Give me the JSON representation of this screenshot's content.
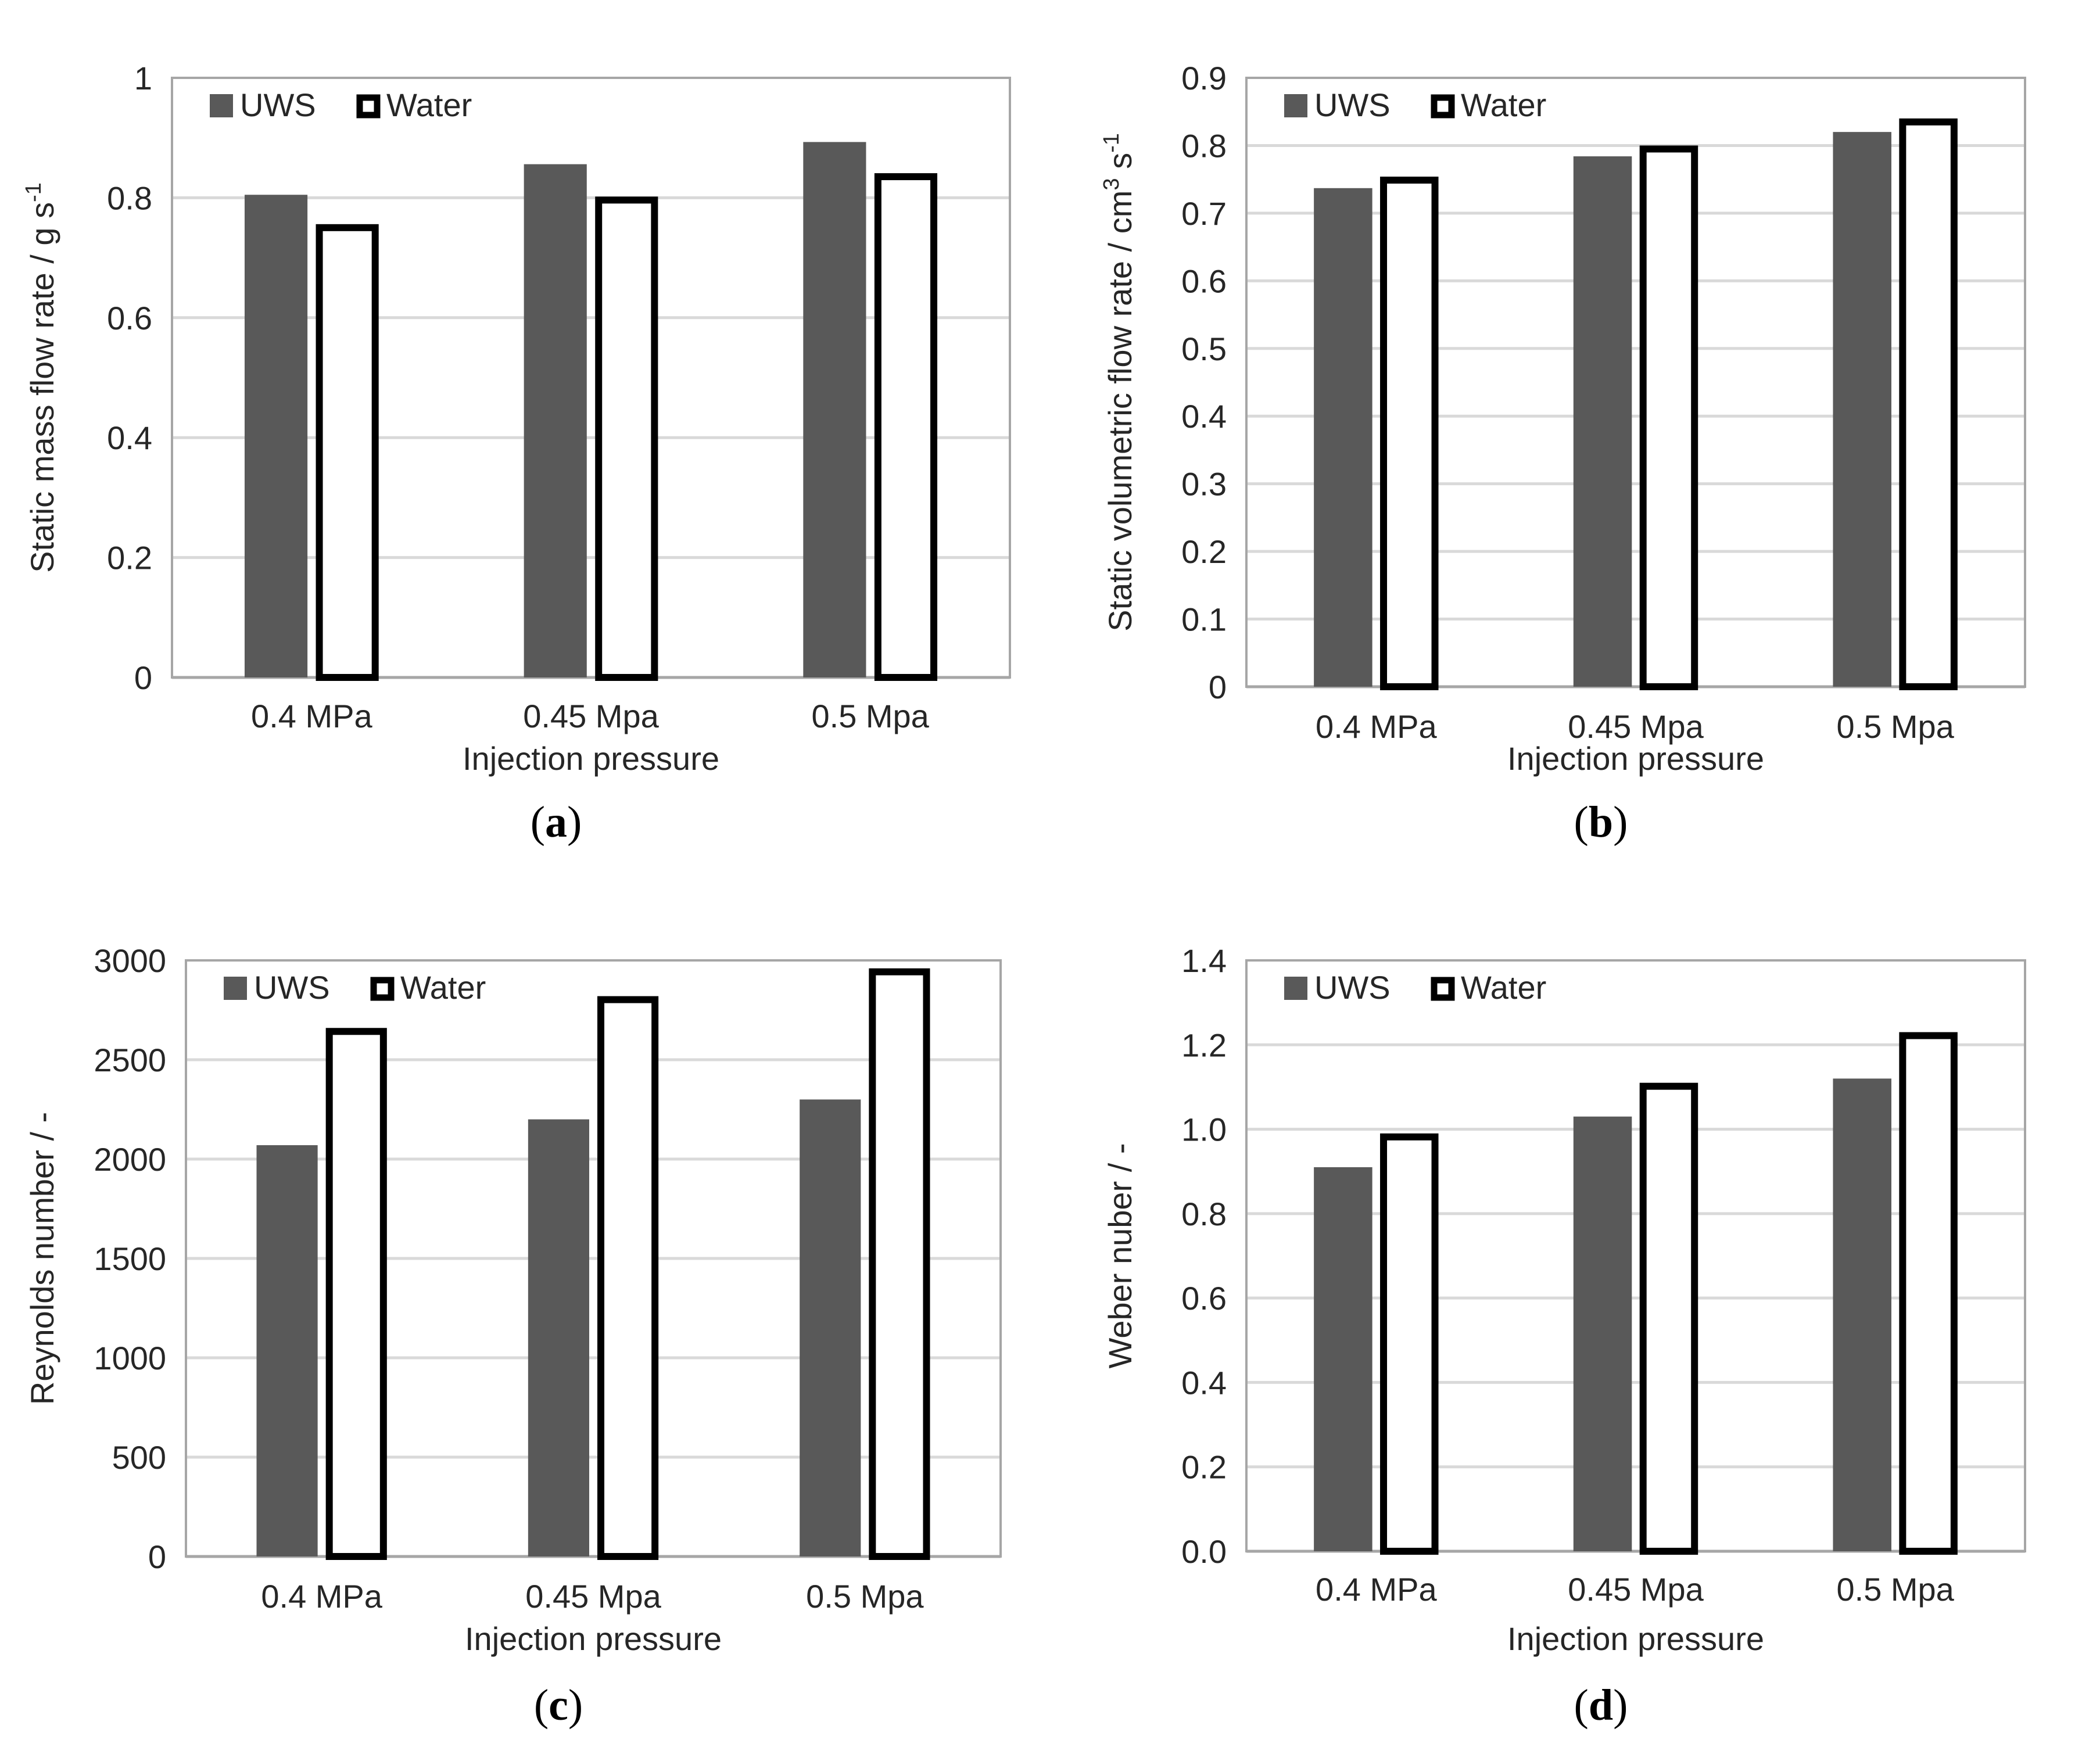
{
  "colors": {
    "uws": "#595959",
    "water_fill": "#ffffff",
    "water_stroke": "#000000",
    "grid": "#d9d9d9",
    "frame": "#a6a6a6"
  },
  "chart_data": [
    {
      "id": "a",
      "type": "bar",
      "panel_label": "a",
      "categories": [
        "0.4 MPa",
        "0.45 Mpa",
        "0.5 Mpa"
      ],
      "series": [
        {
          "name": "UWS",
          "values": [
            0.805,
            0.856,
            0.893
          ]
        },
        {
          "name": "Water",
          "values": [
            0.756,
            0.802,
            0.841
          ]
        }
      ],
      "xlabel": "Injection pressure",
      "ylabel": "Static mass flow rate / g s",
      "ylabel_sup": "-1",
      "ylim": [
        0,
        1
      ],
      "yticks": [
        "0",
        "0.2",
        "0.4",
        "0.6",
        "0.8",
        "1"
      ],
      "legend_position": "top-left",
      "grid": true
    },
    {
      "id": "b",
      "type": "bar",
      "panel_label": "b",
      "categories": [
        "0.4 MPa",
        "0.45 Mpa",
        "0.5 Mpa"
      ],
      "series": [
        {
          "name": "UWS",
          "values": [
            0.737,
            0.784,
            0.82
          ]
        },
        {
          "name": "Water",
          "values": [
            0.754,
            0.8,
            0.84
          ]
        }
      ],
      "xlabel": "Injection pressure",
      "ylabel": "Static volumetric flow rate / cm",
      "ylabel_sup": "3",
      "ylabel_tail": " s",
      "ylabel_tail_sup": "-1",
      "ylim": [
        0,
        0.9
      ],
      "yticks": [
        "0",
        "0.1",
        "0.2",
        "0.3",
        "0.4",
        "0.5",
        "0.6",
        "0.7",
        "0.8",
        "0.9"
      ],
      "legend_position": "top-left",
      "grid": true
    },
    {
      "id": "c",
      "type": "bar",
      "panel_label": "c",
      "categories": [
        "0.4 MPa",
        "0.45 Mpa",
        "0.5 Mpa"
      ],
      "series": [
        {
          "name": "UWS",
          "values": [
            2070,
            2200,
            2300
          ]
        },
        {
          "name": "Water",
          "values": [
            2660,
            2820,
            2960
          ]
        }
      ],
      "xlabel": "Injection pressure",
      "ylabel": "Reynolds number / -",
      "ylim": [
        0,
        3000
      ],
      "yticks": [
        "0",
        "500",
        "1000",
        "1500",
        "2000",
        "2500",
        "3000"
      ],
      "legend_position": "top-left",
      "grid": true
    },
    {
      "id": "d",
      "type": "bar",
      "panel_label": "d",
      "categories": [
        "0.4 MPa",
        "0.45 Mpa",
        "0.5 Mpa"
      ],
      "series": [
        {
          "name": "UWS",
          "values": [
            0.91,
            1.03,
            1.12
          ]
        },
        {
          "name": "Water",
          "values": [
            0.99,
            1.11,
            1.23
          ]
        }
      ],
      "xlabel": "Injection pressure",
      "ylabel": "Weber nuber / -",
      "ylim": [
        0,
        1.4
      ],
      "yticks": [
        "0.0",
        "0.2",
        "0.4",
        "0.6",
        "0.8",
        "1.0",
        "1.2",
        "1.4"
      ],
      "legend_position": "top-left",
      "grid": true
    }
  ]
}
